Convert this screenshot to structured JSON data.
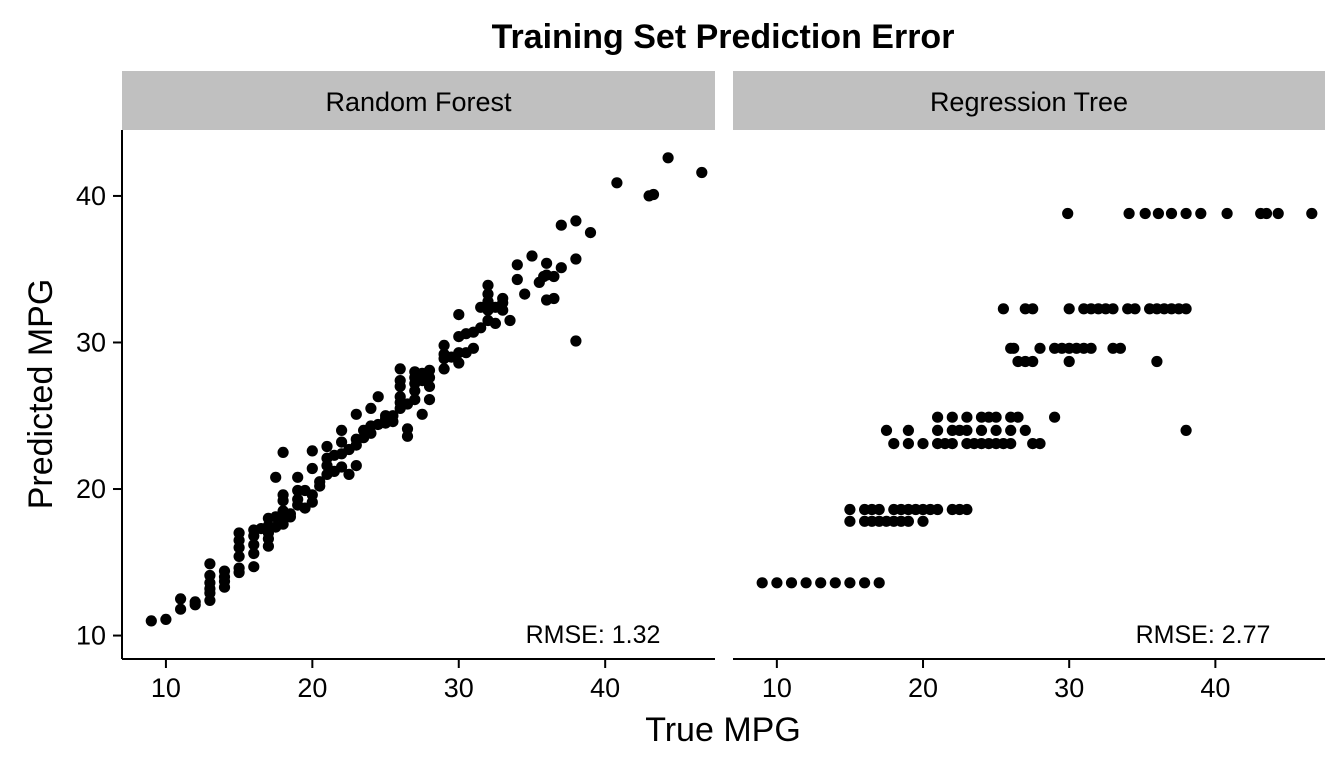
{
  "chart_data": {
    "type": "scatter",
    "title": "Training Set Prediction Error",
    "xlabel": "True MPG",
    "ylabel": "Predicted MPG",
    "xlim": [
      7,
      47.5
    ],
    "ylim": [
      8.4,
      44.5
    ],
    "xticks": [
      10,
      20,
      30,
      40
    ],
    "yticks": [
      10,
      20,
      30,
      40
    ],
    "grid": false,
    "legend": "none",
    "point_color": "#000000",
    "strip_color": "#c0c0c0",
    "panels": [
      {
        "name": "Random Forest",
        "annotation": "RMSE: 1.32",
        "points": [
          [
            9,
            11.0
          ],
          [
            10,
            11.1
          ],
          [
            11,
            11.8
          ],
          [
            11,
            12.5
          ],
          [
            12,
            12.1
          ],
          [
            12,
            12.3
          ],
          [
            13,
            12.4
          ],
          [
            13,
            12.9
          ],
          [
            13,
            13.2
          ],
          [
            13,
            13.6
          ],
          [
            13,
            14.1
          ],
          [
            13,
            14.9
          ],
          [
            14,
            13.3
          ],
          [
            14,
            13.7
          ],
          [
            14,
            14.0
          ],
          [
            14,
            14.4
          ],
          [
            15,
            14.3
          ],
          [
            15,
            14.6
          ],
          [
            15,
            15.4
          ],
          [
            15,
            16.0
          ],
          [
            15,
            16.5
          ],
          [
            15,
            17.0
          ],
          [
            16,
            14.7
          ],
          [
            16,
            15.6
          ],
          [
            16,
            16.2
          ],
          [
            16,
            16.8
          ],
          [
            16,
            17.2
          ],
          [
            16.5,
            17.3
          ],
          [
            17,
            16.1
          ],
          [
            17,
            16.6
          ],
          [
            17,
            17.0
          ],
          [
            17,
            17.5
          ],
          [
            17,
            18.0
          ],
          [
            17.5,
            17.4
          ],
          [
            17.5,
            18.1
          ],
          [
            17.5,
            20.8
          ],
          [
            18,
            17.6
          ],
          [
            18,
            18.0
          ],
          [
            18,
            18.5
          ],
          [
            18,
            19.2
          ],
          [
            18,
            19.6
          ],
          [
            18,
            22.5
          ],
          [
            18.5,
            18.1
          ],
          [
            18.5,
            18.3
          ],
          [
            19,
            18.9
          ],
          [
            19,
            19.3
          ],
          [
            19,
            19.9
          ],
          [
            19,
            20.8
          ],
          [
            19.5,
            18.7
          ],
          [
            19.5,
            19.9
          ],
          [
            20,
            19.1
          ],
          [
            20,
            19.6
          ],
          [
            20,
            21.4
          ],
          [
            20,
            22.6
          ],
          [
            20.5,
            20.2
          ],
          [
            20.5,
            20.5
          ],
          [
            21,
            21.0
          ],
          [
            21,
            21.6
          ],
          [
            21,
            22.1
          ],
          [
            21,
            22.9
          ],
          [
            21.5,
            21.2
          ],
          [
            21.5,
            22.3
          ],
          [
            22,
            21.5
          ],
          [
            22,
            22.4
          ],
          [
            22,
            23.2
          ],
          [
            22,
            24.0
          ],
          [
            22.5,
            21.0
          ],
          [
            22.5,
            22.7
          ],
          [
            23,
            21.6
          ],
          [
            23,
            23.0
          ],
          [
            23,
            23.4
          ],
          [
            23,
            25.1
          ],
          [
            23.5,
            23.5
          ],
          [
            23.5,
            24.0
          ],
          [
            24,
            23.8
          ],
          [
            24,
            24.3
          ],
          [
            24,
            25.5
          ],
          [
            24.5,
            24.4
          ],
          [
            24.5,
            26.3
          ],
          [
            25,
            24.5
          ],
          [
            25,
            24.8
          ],
          [
            25,
            25.0
          ],
          [
            25.5,
            24.6
          ],
          [
            25.5,
            25.0
          ],
          [
            26,
            25.5
          ],
          [
            26,
            25.9
          ],
          [
            26,
            26.3
          ],
          [
            26,
            27.0
          ],
          [
            26,
            27.4
          ],
          [
            26,
            28.2
          ],
          [
            26.5,
            25.8
          ],
          [
            26.5,
            23.6
          ],
          [
            26.5,
            24.1
          ],
          [
            27,
            26.1
          ],
          [
            27,
            26.7
          ],
          [
            27,
            27.2
          ],
          [
            27,
            27.6
          ],
          [
            27,
            28.0
          ],
          [
            27.5,
            25.1
          ],
          [
            27.5,
            27.4
          ],
          [
            27.5,
            27.9
          ],
          [
            28,
            26.1
          ],
          [
            28,
            27.0
          ],
          [
            28,
            27.6
          ],
          [
            28,
            28.1
          ],
          [
            29,
            28.2
          ],
          [
            29,
            28.9
          ],
          [
            29,
            29.2
          ],
          [
            29,
            29.8
          ],
          [
            29.5,
            29.0
          ],
          [
            30,
            28.6
          ],
          [
            30,
            29.3
          ],
          [
            30,
            30.4
          ],
          [
            30,
            31.9
          ],
          [
            30.5,
            29.3
          ],
          [
            30.5,
            30.6
          ],
          [
            31,
            30.7
          ],
          [
            31,
            29.6
          ],
          [
            31.5,
            31.0
          ],
          [
            31.5,
            32.4
          ],
          [
            32,
            31.5
          ],
          [
            32,
            32.2
          ],
          [
            32,
            32.8
          ],
          [
            32,
            33.3
          ],
          [
            32,
            33.9
          ],
          [
            32.5,
            31.3
          ],
          [
            32.5,
            32.4
          ],
          [
            33,
            32.7
          ],
          [
            33,
            33.0
          ],
          [
            33,
            32.2
          ],
          [
            33.5,
            31.5
          ],
          [
            34,
            34.3
          ],
          [
            34,
            35.3
          ],
          [
            34.5,
            33.3
          ],
          [
            35,
            35.9
          ],
          [
            35.5,
            34.1
          ],
          [
            35.8,
            34.5
          ],
          [
            36,
            32.9
          ],
          [
            36,
            34.6
          ],
          [
            36,
            35.4
          ],
          [
            36.5,
            33.0
          ],
          [
            36.5,
            34.5
          ],
          [
            37,
            38.0
          ],
          [
            37,
            35.1
          ],
          [
            38,
            38.3
          ],
          [
            38,
            35.7
          ],
          [
            38,
            30.1
          ],
          [
            39,
            37.5
          ],
          [
            40.8,
            40.9
          ],
          [
            43,
            40.0
          ],
          [
            43.3,
            40.1
          ],
          [
            44.3,
            42.6
          ],
          [
            46.6,
            41.6
          ]
        ]
      },
      {
        "name": "Regression Tree",
        "annotation": "RMSE: 2.77",
        "points": [
          [
            9,
            13.6
          ],
          [
            10,
            13.6
          ],
          [
            11,
            13.6
          ],
          [
            12,
            13.6
          ],
          [
            13,
            13.6
          ],
          [
            14,
            13.6
          ],
          [
            15,
            13.6
          ],
          [
            16,
            13.6
          ],
          [
            17,
            13.6
          ],
          [
            15,
            17.8
          ],
          [
            16,
            17.8
          ],
          [
            16.5,
            17.8
          ],
          [
            17,
            17.8
          ],
          [
            17.5,
            17.8
          ],
          [
            18,
            17.8
          ],
          [
            18.5,
            17.8
          ],
          [
            19,
            17.8
          ],
          [
            20,
            17.8
          ],
          [
            15,
            18.6
          ],
          [
            16,
            18.6
          ],
          [
            16.5,
            18.6
          ],
          [
            17,
            18.6
          ],
          [
            18,
            18.6
          ],
          [
            18.5,
            18.6
          ],
          [
            19,
            18.6
          ],
          [
            19.5,
            18.6
          ],
          [
            20,
            18.6
          ],
          [
            20.5,
            18.6
          ],
          [
            21,
            18.6
          ],
          [
            22,
            18.6
          ],
          [
            22.5,
            18.6
          ],
          [
            23,
            18.6
          ],
          [
            17.5,
            24.0
          ],
          [
            19,
            24.0
          ],
          [
            21,
            24.0
          ],
          [
            22,
            24.0
          ],
          [
            22.5,
            24.0
          ],
          [
            23,
            24.0
          ],
          [
            24,
            24.0
          ],
          [
            25,
            24.0
          ],
          [
            26,
            24.0
          ],
          [
            27,
            24.0
          ],
          [
            38,
            24.0
          ],
          [
            18,
            23.1
          ],
          [
            19,
            23.1
          ],
          [
            20,
            23.1
          ],
          [
            21,
            23.1
          ],
          [
            21.5,
            23.1
          ],
          [
            22,
            23.1
          ],
          [
            23,
            23.1
          ],
          [
            23.5,
            23.1
          ],
          [
            24,
            23.1
          ],
          [
            24.5,
            23.1
          ],
          [
            25,
            23.1
          ],
          [
            25.5,
            23.1
          ],
          [
            26,
            23.1
          ],
          [
            27.5,
            23.1
          ],
          [
            28,
            23.1
          ],
          [
            21,
            24.9
          ],
          [
            22,
            24.9
          ],
          [
            23,
            24.9
          ],
          [
            24,
            24.9
          ],
          [
            24.5,
            24.9
          ],
          [
            25,
            24.9
          ],
          [
            26,
            24.9
          ],
          [
            26.5,
            24.9
          ],
          [
            29,
            24.9
          ],
          [
            26.5,
            28.7
          ],
          [
            27,
            28.7
          ],
          [
            27.5,
            28.7
          ],
          [
            30,
            28.7
          ],
          [
            36,
            28.7
          ],
          [
            26,
            29.6
          ],
          [
            26.2,
            29.6
          ],
          [
            28,
            29.6
          ],
          [
            29,
            29.6
          ],
          [
            29.5,
            29.6
          ],
          [
            30,
            29.6
          ],
          [
            30.5,
            29.6
          ],
          [
            31,
            29.6
          ],
          [
            31.5,
            29.6
          ],
          [
            33,
            29.6
          ],
          [
            33.5,
            29.6
          ],
          [
            25.5,
            32.3
          ],
          [
            27,
            32.3
          ],
          [
            27.5,
            32.3
          ],
          [
            30,
            32.3
          ],
          [
            31,
            32.3
          ],
          [
            31.5,
            32.3
          ],
          [
            32,
            32.3
          ],
          [
            32.5,
            32.3
          ],
          [
            33,
            32.3
          ],
          [
            34,
            32.3
          ],
          [
            34.5,
            32.3
          ],
          [
            35.5,
            32.3
          ],
          [
            36,
            32.3
          ],
          [
            36.5,
            32.3
          ],
          [
            37,
            32.3
          ],
          [
            37.5,
            32.3
          ],
          [
            38,
            32.3
          ],
          [
            29.9,
            38.8
          ],
          [
            34.1,
            38.8
          ],
          [
            35.2,
            38.8
          ],
          [
            36.1,
            38.8
          ],
          [
            37,
            38.8
          ],
          [
            38,
            38.8
          ],
          [
            39,
            38.8
          ],
          [
            40.8,
            38.8
          ],
          [
            43.1,
            38.8
          ],
          [
            43.5,
            38.8
          ],
          [
            44.3,
            38.8
          ],
          [
            46.6,
            38.8
          ]
        ]
      }
    ]
  }
}
